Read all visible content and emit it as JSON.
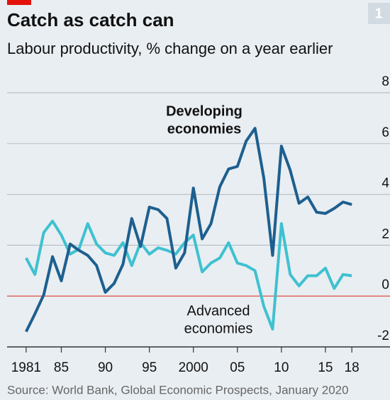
{
  "chart_data": {
    "type": "line",
    "title": "Catch as catch can",
    "subtitle": "Labour productivity, % change on a year earlier",
    "chart_number": "1",
    "source": "Source: World Bank, Global Economic Prospects, January 2020",
    "x": [
      1981,
      1982,
      1983,
      1984,
      1985,
      1986,
      1987,
      1988,
      1989,
      1990,
      1991,
      1992,
      1993,
      1994,
      1995,
      1996,
      1997,
      1998,
      1999,
      2000,
      2001,
      2002,
      2003,
      2004,
      2005,
      2006,
      2007,
      2008,
      2009,
      2010,
      2011,
      2012,
      2013,
      2014,
      2015,
      2016,
      2017,
      2018
    ],
    "series": [
      {
        "name": "Developing economies",
        "label_lines": [
          "Developing",
          "economies"
        ],
        "color": "#1d5f8f",
        "values": [
          -1.4,
          -0.7,
          0.05,
          1.55,
          0.6,
          2.05,
          1.8,
          1.6,
          1.2,
          0.15,
          0.5,
          1.25,
          3.05,
          1.95,
          3.5,
          3.4,
          3.05,
          1.1,
          1.7,
          4.25,
          2.25,
          2.85,
          4.3,
          5.0,
          5.1,
          6.1,
          6.6,
          4.65,
          1.6,
          5.9,
          4.95,
          3.65,
          3.9,
          3.3,
          3.25,
          3.45,
          3.7,
          3.6
        ]
      },
      {
        "name": "Advanced economies",
        "label_lines": [
          "Advanced",
          "economies"
        ],
        "color": "#3fc1d0",
        "values": [
          1.5,
          0.85,
          2.5,
          2.95,
          2.4,
          1.65,
          1.85,
          2.85,
          2.05,
          1.7,
          1.6,
          2.1,
          1.2,
          2.1,
          1.65,
          1.9,
          1.8,
          1.65,
          2.1,
          2.4,
          0.95,
          1.3,
          1.5,
          2.1,
          1.3,
          1.2,
          1.0,
          -0.4,
          -1.3,
          2.85,
          0.85,
          0.4,
          0.8,
          0.8,
          1.1,
          0.3,
          0.85,
          0.8
        ]
      }
    ],
    "xlim": [
      1979,
      2020
    ],
    "xticks": [
      1981,
      {
        "value": 1985,
        "label": "85"
      },
      {
        "value": 1990,
        "label": "90"
      },
      {
        "value": 1995,
        "label": "95"
      },
      2000,
      {
        "value": 2005,
        "label": "05"
      },
      {
        "value": 2010,
        "label": "10"
      },
      {
        "value": 2015,
        "label": "15"
      },
      {
        "value": 2018,
        "label": "18"
      }
    ],
    "ylim": [
      -2,
      8
    ],
    "yticks": [
      -2,
      0,
      2,
      4,
      6,
      8
    ],
    "grid": true
  }
}
